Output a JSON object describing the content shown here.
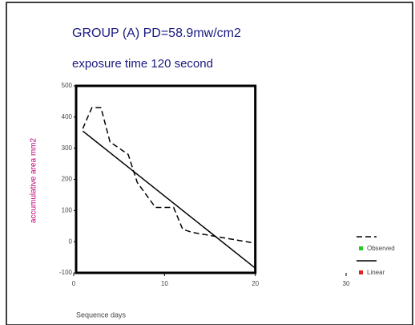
{
  "chart_data": {
    "type": "line",
    "title": "GROUP (A) PD=58.9mw/cm2",
    "subtitle": "exposure time 120 second",
    "x_label": "Sequence days",
    "y_label": "accumulative area mm2",
    "xlim": [
      0,
      30
    ],
    "xticks": [
      0,
      10,
      20,
      30
    ],
    "ylim": [
      -100,
      500
    ],
    "yticks": [
      -100,
      0,
      100,
      200,
      300,
      400,
      500
    ],
    "legend": "right",
    "series": [
      {
        "name": "Observed",
        "color": "#000000",
        "marker_color": "#22cc22",
        "style": "dashed",
        "x": [
          1,
          2,
          3,
          4,
          5,
          6,
          7,
          8,
          9,
          10,
          11,
          12,
          13,
          14,
          15,
          16,
          17,
          18,
          19,
          20
        ],
        "values": [
          363,
          430,
          430,
          320,
          300,
          280,
          190,
          150,
          110,
          110,
          110,
          40,
          30,
          25,
          20,
          15,
          10,
          5,
          0,
          -5
        ]
      },
      {
        "name": "Linear",
        "color": "#000000",
        "marker_color": "#dd2222",
        "style": "solid",
        "x": [
          1,
          20
        ],
        "values": [
          355,
          -85
        ]
      }
    ]
  }
}
